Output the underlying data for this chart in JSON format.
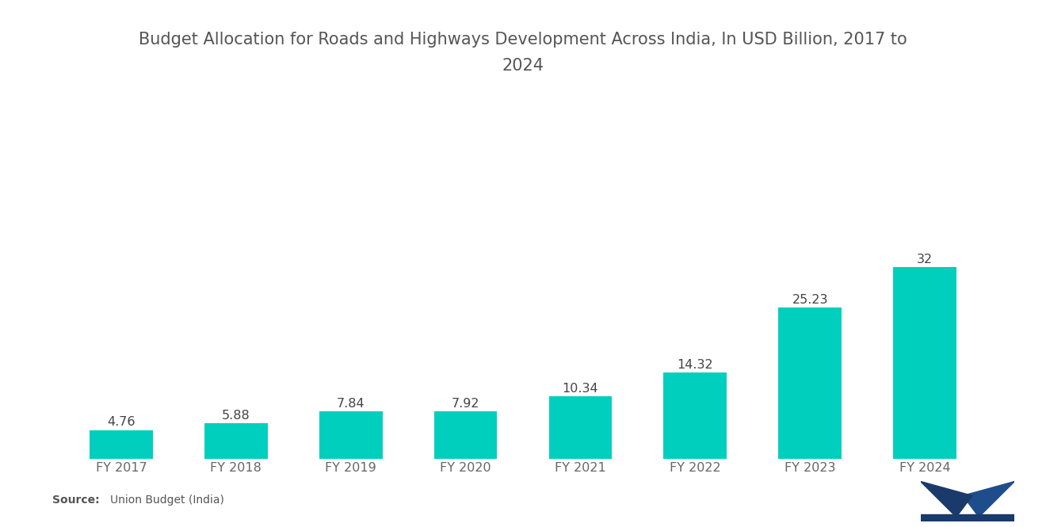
{
  "title_line1": "Budget Allocation for Roads and Highways Development Across India, In USD Billion, 2017 to",
  "title_line2": "2024",
  "categories": [
    "FY 2017",
    "FY 2018",
    "FY 2019",
    "FY 2020",
    "FY 2021",
    "FY 2022",
    "FY 2023",
    "FY 2024"
  ],
  "values": [
    4.76,
    5.88,
    7.84,
    7.92,
    10.34,
    14.32,
    25.23,
    32
  ],
  "bar_color": "#00CFBE",
  "bar_width": 0.55,
  "background_color": "#ffffff",
  "title_fontsize": 15,
  "label_fontsize": 11.5,
  "value_label_fontsize": 11.5,
  "value_label_color": "#444444",
  "axis_label_color": "#666666",
  "source_bold": "Source:",
  "source_normal": "  Union Budget (India)",
  "ylim": [
    0,
    37
  ],
  "title_color": "#555555"
}
